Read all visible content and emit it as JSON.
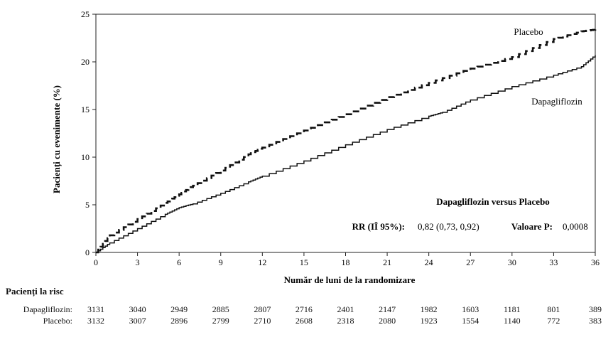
{
  "chart_data": {
    "type": "line",
    "title": "",
    "xlabel": "Număr de luni de la randomizare",
    "ylabel": "Pacienți cu evenimente (%)",
    "xlim": [
      0,
      36
    ],
    "ylim": [
      0,
      25
    ],
    "x_ticks": [
      "0",
      "3",
      "6",
      "9",
      "12",
      "15",
      "18",
      "21",
      "24",
      "27",
      "30",
      "33",
      "36"
    ],
    "y_ticks": [
      "0",
      "5",
      "10",
      "15",
      "20",
      "25"
    ],
    "grid": false,
    "series": [
      {
        "name": "Placebo",
        "style": "dashed",
        "x": [
          0,
          1,
          3,
          5,
          6,
          7,
          9,
          11,
          12,
          15,
          18,
          21,
          24,
          27,
          30,
          33,
          35,
          36
        ],
        "y": [
          0,
          1.8,
          3.5,
          5.2,
          6.1,
          7.0,
          8.6,
          10.3,
          11.0,
          12.8,
          14.5,
          16.3,
          17.8,
          19.3,
          20.5,
          22.4,
          23.2,
          23.4
        ]
      },
      {
        "name": "Dapagliflozin",
        "style": "solid",
        "x": [
          0,
          1,
          3,
          5,
          6,
          7,
          9,
          11,
          12,
          15,
          18,
          21,
          24,
          25,
          27,
          30,
          33,
          35,
          36
        ],
        "y": [
          0,
          1.0,
          2.5,
          4.0,
          4.7,
          5.1,
          6.2,
          7.4,
          8.0,
          9.6,
          11.3,
          12.9,
          14.3,
          14.7,
          16.0,
          17.4,
          18.6,
          19.5,
          20.7
        ]
      }
    ],
    "annotations": {
      "legend_placebo": "Placebo",
      "legend_dapagliflozin": "Dapagliflozin",
      "comparison_title": "Dapagliflozin versus Placebo",
      "rr_label": "RR (IÎ 95%):",
      "rr_value": "0,82 (0,73, 0,92)",
      "p_label": "Valoare P:",
      "p_value": "0,0008"
    }
  },
  "risk_table": {
    "title": "Pacienți la risc",
    "rows": [
      {
        "label": "Dapagliflozin:",
        "values": [
          "3131",
          "3040",
          "2949",
          "2885",
          "2807",
          "2716",
          "2401",
          "2147",
          "1982",
          "1603",
          "1181",
          "801",
          "389"
        ]
      },
      {
        "label": "Placebo:",
        "values": [
          "3132",
          "3007",
          "2896",
          "2799",
          "2710",
          "2608",
          "2318",
          "2080",
          "1923",
          "1554",
          "1140",
          "772",
          "383"
        ]
      }
    ]
  }
}
